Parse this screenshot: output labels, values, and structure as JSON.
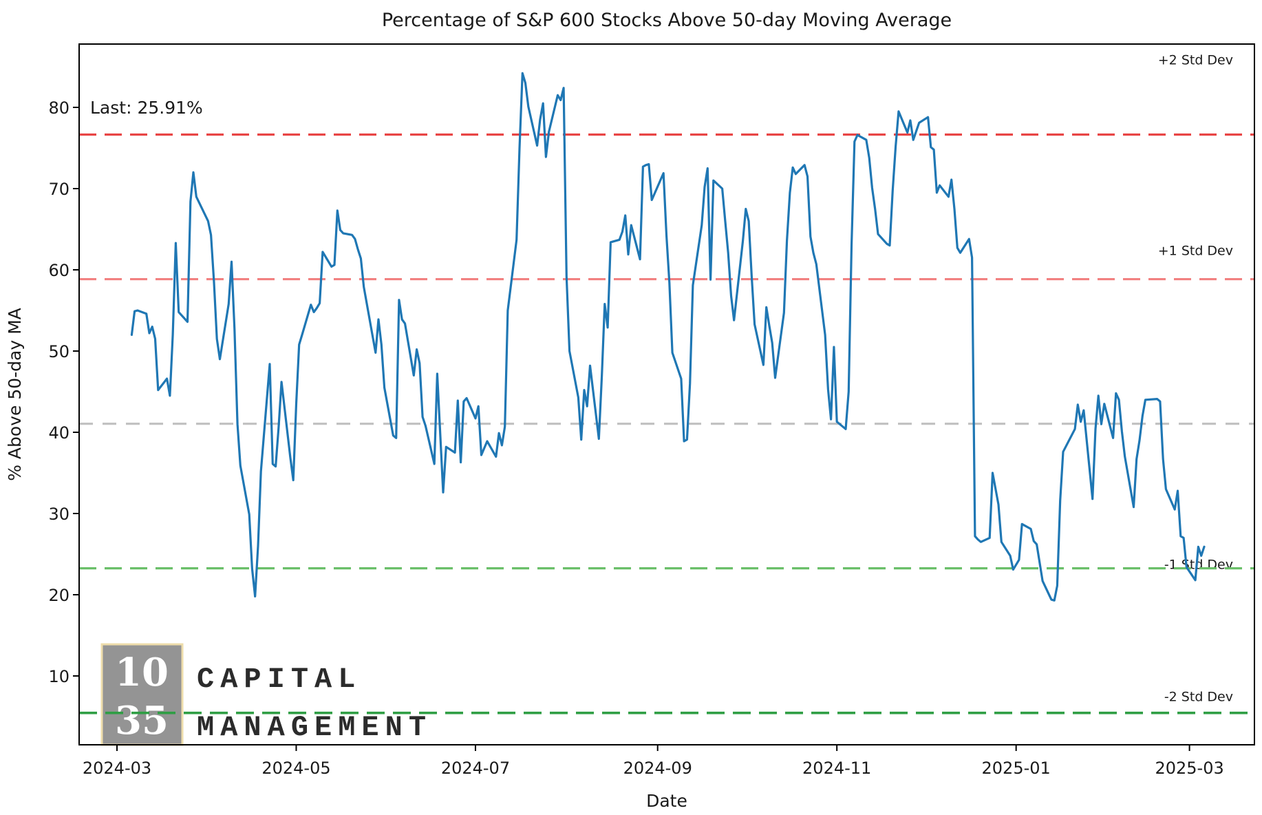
{
  "title": "Percentage of S&P 600 Stocks Above 50-day Moving Average",
  "annotation_last": "Last: 25.91%",
  "x_axis": {
    "label": "Date",
    "ticks": [
      "2024-03",
      "2024-05",
      "2024-07",
      "2024-09",
      "2024-11",
      "2025-01",
      "2025-03"
    ]
  },
  "y_axis": {
    "label": "% Above 50-day MA",
    "ticks": [
      10,
      20,
      30,
      40,
      50,
      60,
      70,
      80
    ]
  },
  "colors": {
    "series": "#1f77b4",
    "plus2": "#e84545",
    "plus1": "#f28080",
    "mean": "#c2c2c2",
    "minus1": "#6abf69",
    "minus2": "#2f9e44",
    "logo_box": "#8c8c8c",
    "logo_border": "#eddba4",
    "logo_text": "#f3d791"
  },
  "std_lines": [
    {
      "name": "plus2",
      "label": "+2 Std Dev",
      "value": 76.65
    },
    {
      "name": "plus1",
      "label": "+1 Std Dev",
      "value": 58.85
    },
    {
      "name": "mean",
      "label": "",
      "value": 41.05
    },
    {
      "name": "minus1",
      "label": "-1 Std Dev",
      "value": 23.25
    },
    {
      "name": "minus2",
      "label": "-2 Std Dev",
      "value": 5.45
    }
  ],
  "logo": {
    "num_top": "10",
    "num_bottom": "35",
    "word_top": "CAPITAL",
    "word_bottom": "MANAGEMENT"
  },
  "chart_data": {
    "type": "line",
    "title": "Percentage of S&P 600 Stocks Above 50-day Moving Average",
    "xlabel": "Date",
    "ylabel": "% Above 50-day MA",
    "ylim": [
      1.5,
      87.8
    ],
    "xlim": [
      "2024-02-16",
      "2025-03-24"
    ],
    "legend": "none",
    "grid": false,
    "last_value": 25.91,
    "mean": 41.05,
    "std": 17.8,
    "dates": [
      "2024-03-06",
      "2024-03-07",
      "2024-03-08",
      "2024-03-11",
      "2024-03-12",
      "2024-03-13",
      "2024-03-14",
      "2024-03-15",
      "2024-03-18",
      "2024-03-19",
      "2024-03-20",
      "2024-03-21",
      "2024-03-22",
      "2024-03-25",
      "2024-03-26",
      "2024-03-27",
      "2024-03-28",
      "2024-04-01",
      "2024-04-02",
      "2024-04-03",
      "2024-04-04",
      "2024-04-05",
      "2024-04-08",
      "2024-04-09",
      "2024-04-10",
      "2024-04-11",
      "2024-04-12",
      "2024-04-15",
      "2024-04-16",
      "2024-04-17",
      "2024-04-18",
      "2024-04-19",
      "2024-04-22",
      "2024-04-23",
      "2024-04-24",
      "2024-04-25",
      "2024-04-26",
      "2024-04-29",
      "2024-04-30",
      "2024-05-01",
      "2024-05-02",
      "2024-05-03",
      "2024-05-06",
      "2024-05-07",
      "2024-05-08",
      "2024-05-09",
      "2024-05-10",
      "2024-05-13",
      "2024-05-14",
      "2024-05-15",
      "2024-05-16",
      "2024-05-17",
      "2024-05-20",
      "2024-05-21",
      "2024-05-22",
      "2024-05-23",
      "2024-05-24",
      "2024-05-28",
      "2024-05-29",
      "2024-05-30",
      "2024-05-31",
      "2024-06-03",
      "2024-06-04",
      "2024-06-05",
      "2024-06-06",
      "2024-06-07",
      "2024-06-10",
      "2024-06-11",
      "2024-06-12",
      "2024-06-13",
      "2024-06-14",
      "2024-06-17",
      "2024-06-18",
      "2024-06-20",
      "2024-06-21",
      "2024-06-24",
      "2024-06-25",
      "2024-06-26",
      "2024-06-27",
      "2024-06-28",
      "2024-07-01",
      "2024-07-02",
      "2024-07-03",
      "2024-07-05",
      "2024-07-08",
      "2024-07-09",
      "2024-07-10",
      "2024-07-11",
      "2024-07-12",
      "2024-07-15",
      "2024-07-16",
      "2024-07-17",
      "2024-07-18",
      "2024-07-19",
      "2024-07-22",
      "2024-07-23",
      "2024-07-24",
      "2024-07-25",
      "2024-07-26",
      "2024-07-29",
      "2024-07-30",
      "2024-07-31",
      "2024-08-01",
      "2024-08-02",
      "2024-08-05",
      "2024-08-06",
      "2024-08-07",
      "2024-08-08",
      "2024-08-09",
      "2024-08-12",
      "2024-08-13",
      "2024-08-14",
      "2024-08-15",
      "2024-08-16",
      "2024-08-19",
      "2024-08-20",
      "2024-08-21",
      "2024-08-22",
      "2024-08-23",
      "2024-08-26",
      "2024-08-27",
      "2024-08-28",
      "2024-08-29",
      "2024-08-30",
      "2024-09-03",
      "2024-09-04",
      "2024-09-05",
      "2024-09-06",
      "2024-09-09",
      "2024-09-10",
      "2024-09-11",
      "2024-09-12",
      "2024-09-13",
      "2024-09-16",
      "2024-09-17",
      "2024-09-18",
      "2024-09-19",
      "2024-09-20",
      "2024-09-23",
      "2024-09-24",
      "2024-09-25",
      "2024-09-26",
      "2024-09-27",
      "2024-09-30",
      "2024-10-01",
      "2024-10-02",
      "2024-10-03",
      "2024-10-04",
      "2024-10-07",
      "2024-10-08",
      "2024-10-09",
      "2024-10-10",
      "2024-10-11",
      "2024-10-14",
      "2024-10-15",
      "2024-10-16",
      "2024-10-17",
      "2024-10-18",
      "2024-10-21",
      "2024-10-22",
      "2024-10-23",
      "2024-10-24",
      "2024-10-25",
      "2024-10-28",
      "2024-10-29",
      "2024-10-30",
      "2024-10-31",
      "2024-11-01",
      "2024-11-04",
      "2024-11-05",
      "2024-11-06",
      "2024-11-07",
      "2024-11-08",
      "2024-11-11",
      "2024-11-12",
      "2024-11-13",
      "2024-11-14",
      "2024-11-15",
      "2024-11-18",
      "2024-11-19",
      "2024-11-20",
      "2024-11-21",
      "2024-11-22",
      "2024-11-25",
      "2024-11-26",
      "2024-11-27",
      "2024-11-29",
      "2024-12-02",
      "2024-12-03",
      "2024-12-04",
      "2024-12-05",
      "2024-12-06",
      "2024-12-09",
      "2024-12-10",
      "2024-12-11",
      "2024-12-12",
      "2024-12-13",
      "2024-12-16",
      "2024-12-17",
      "2024-12-18",
      "2024-12-19",
      "2024-12-20",
      "2024-12-23",
      "2024-12-24",
      "2024-12-26",
      "2024-12-27",
      "2024-12-30",
      "2024-12-31",
      "2025-01-02",
      "2025-01-03",
      "2025-01-06",
      "2025-01-07",
      "2025-01-08",
      "2025-01-10",
      "2025-01-13",
      "2025-01-14",
      "2025-01-15",
      "2025-01-16",
      "2025-01-17",
      "2025-01-21",
      "2025-01-22",
      "2025-01-23",
      "2025-01-24",
      "2025-01-27",
      "2025-01-28",
      "2025-01-29",
      "2025-01-30",
      "2025-01-31",
      "2025-02-03",
      "2025-02-04",
      "2025-02-05",
      "2025-02-06",
      "2025-02-07",
      "2025-02-10",
      "2025-02-11",
      "2025-02-12",
      "2025-02-13",
      "2025-02-14",
      "2025-02-18",
      "2025-02-19",
      "2025-02-20",
      "2025-02-21",
      "2025-02-24",
      "2025-02-25",
      "2025-02-26",
      "2025-02-27",
      "2025-02-28",
      "2025-03-03",
      "2025-03-04",
      "2025-03-05",
      "2025-03-06"
    ],
    "values": [
      52.0,
      54.9,
      55.0,
      54.6,
      52.2,
      53.0,
      51.5,
      45.2,
      46.6,
      44.5,
      52.0,
      63.3,
      54.8,
      53.6,
      68.4,
      72.0,
      69.0,
      66.0,
      64.3,
      58.6,
      51.5,
      49.0,
      55.8,
      61.0,
      52.7,
      41.0,
      35.9,
      29.9,
      23.2,
      19.8,
      26.0,
      35.2,
      48.4,
      36.1,
      35.8,
      40.6,
      46.2,
      36.9,
      34.1,
      43.5,
      50.8,
      52.0,
      55.7,
      54.8,
      55.3,
      55.9,
      62.2,
      60.4,
      60.6,
      67.3,
      64.9,
      64.5,
      64.3,
      63.8,
      62.5,
      61.4,
      57.9,
      49.8,
      53.9,
      50.8,
      45.5,
      39.6,
      39.3,
      56.3,
      53.9,
      53.4,
      47.0,
      50.2,
      48.5,
      41.9,
      40.8,
      36.1,
      47.2,
      32.6,
      38.2,
      37.5,
      43.9,
      36.3,
      43.8,
      44.2,
      41.7,
      43.2,
      37.2,
      38.9,
      37.0,
      39.9,
      38.4,
      40.7,
      55.0,
      63.7,
      75.0,
      84.2,
      83.0,
      80.1,
      75.3,
      78.5,
      80.5,
      73.9,
      77.0,
      81.5,
      80.9,
      82.4,
      59.2,
      50.0,
      44.3,
      39.1,
      45.2,
      43.2,
      48.2,
      39.2,
      46.9,
      55.8,
      52.9,
      63.4,
      63.7,
      64.7,
      66.7,
      61.9,
      65.5,
      61.3,
      72.7,
      72.9,
      73.0,
      68.6,
      71.9,
      64.3,
      58.4,
      49.8,
      46.6,
      38.9,
      39.1,
      46.0,
      58.1,
      65.5,
      70.2,
      72.5,
      58.8,
      71.0,
      70.0,
      66.0,
      62.1,
      56.8,
      53.8,
      63.5,
      67.5,
      66.0,
      59.3,
      53.3,
      48.3,
      55.4,
      53.1,
      51.0,
      46.7,
      54.7,
      63.6,
      69.5,
      72.6,
      71.8,
      72.9,
      71.5,
      64.1,
      62.1,
      60.7,
      52.0,
      45.3,
      41.6,
      50.5,
      41.3,
      40.4,
      45.0,
      63.0,
      75.8,
      76.6,
      76.0,
      73.8,
      70.1,
      67.5,
      64.4,
      63.2,
      63.0,
      69.8,
      75.2,
      79.5,
      76.9,
      78.4,
      76.0,
      78.1,
      78.8,
      75.1,
      74.8,
      69.5,
      70.4,
      69.0,
      71.1,
      67.5,
      62.7,
      62.1,
      63.8,
      61.5,
      27.2,
      26.8,
      26.5,
      27.0,
      35.0,
      31.1,
      26.5,
      24.8,
      23.1,
      24.3,
      28.7,
      28.1,
      26.6,
      26.2,
      21.7,
      19.4,
      19.3,
      21.1,
      31.6,
      37.6,
      40.4,
      43.4,
      41.3,
      42.7,
      31.8,
      40.4,
      44.5,
      41.0,
      43.5,
      39.3,
      44.8,
      44.0,
      40.1,
      37.0,
      30.8,
      36.7,
      39.0,
      42.0,
      44.0,
      44.1,
      43.8,
      36.7,
      33.0,
      30.5,
      32.8,
      27.2,
      27.0,
      23.4,
      21.8,
      25.9,
      24.8,
      25.91
    ]
  }
}
